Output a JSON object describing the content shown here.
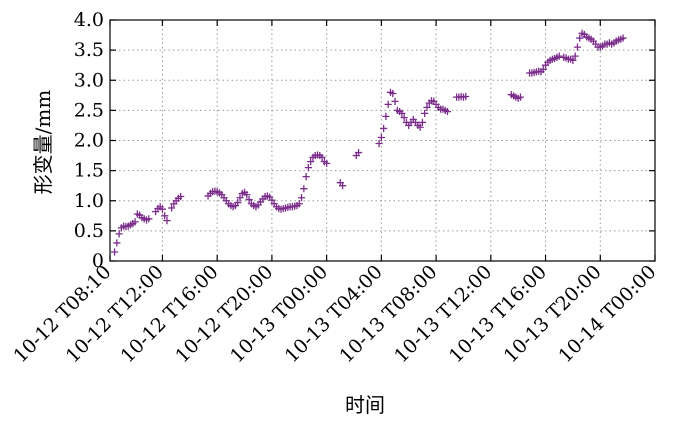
{
  "chart_data": {
    "type": "scatter",
    "title": "",
    "xlabel": "时间",
    "ylabel": "形变量/mm",
    "ylim": [
      0,
      4.0
    ],
    "xlim": [
      "10-12 T08:10",
      "10-14 T00:00"
    ],
    "grid": true,
    "marker": "+",
    "color": "#7b2d8b",
    "x_ticks": [
      "10-12 T08:10",
      "10-12 T12:00",
      "10-12 T16:00",
      "10-12 T20:00",
      "10-13 T00:00",
      "10-13 T04:00",
      "10-13 T08:00",
      "10-13 T12:00",
      "10-13 T16:00",
      "10-13 T20:00",
      "10-14 T00:00"
    ],
    "y_ticks": [
      "0",
      "0.5",
      "1.0",
      "1.5",
      "2.0",
      "2.5",
      "3.0",
      "3.5",
      "4.0"
    ],
    "series": [
      {
        "points": [
          [
            "10-12 T08:30",
            0.15
          ],
          [
            "10-12 T08:40",
            0.3
          ],
          [
            "10-12 T08:50",
            0.45
          ],
          [
            "10-12 T09:00",
            0.55
          ],
          [
            "10-12 T09:10",
            0.58
          ],
          [
            "10-12 T09:20",
            0.57
          ],
          [
            "10-12 T09:30",
            0.58
          ],
          [
            "10-12 T09:40",
            0.6
          ],
          [
            "10-12 T09:50",
            0.62
          ],
          [
            "10-12 T10:00",
            0.65
          ],
          [
            "10-12 T10:10",
            0.78
          ],
          [
            "10-12 T10:20",
            0.76
          ],
          [
            "10-12 T10:30",
            0.72
          ],
          [
            "10-12 T10:40",
            0.7
          ],
          [
            "10-12 T10:50",
            0.68
          ],
          [
            "10-12 T11:00",
            0.7
          ],
          [
            "10-12 T11:30",
            0.82
          ],
          [
            "10-12 T11:40",
            0.87
          ],
          [
            "10-12 T11:50",
            0.9
          ],
          [
            "10-12 T12:00",
            0.86
          ],
          [
            "10-12 T12:10",
            0.75
          ],
          [
            "10-12 T12:20",
            0.67
          ],
          [
            "10-12 T12:40",
            0.88
          ],
          [
            "10-12 T12:50",
            0.95
          ],
          [
            "10-12 T13:00",
            1.0
          ],
          [
            "10-12 T13:10",
            1.04
          ],
          [
            "10-12 T13:20",
            1.07
          ],
          [
            "10-12 T15:20",
            1.08
          ],
          [
            "10-12 T15:30",
            1.12
          ],
          [
            "10-12 T15:40",
            1.15
          ],
          [
            "10-12 T15:50",
            1.16
          ],
          [
            "10-12 T16:00",
            1.15
          ],
          [
            "10-12 T16:10",
            1.13
          ],
          [
            "10-12 T16:20",
            1.1
          ],
          [
            "10-12 T16:30",
            1.05
          ],
          [
            "10-12 T16:40",
            1.0
          ],
          [
            "10-12 T16:50",
            0.95
          ],
          [
            "10-12 T17:00",
            0.92
          ],
          [
            "10-12 T17:10",
            0.9
          ],
          [
            "10-12 T17:20",
            0.92
          ],
          [
            "10-12 T17:30",
            0.97
          ],
          [
            "10-12 T17:40",
            1.05
          ],
          [
            "10-12 T17:50",
            1.12
          ],
          [
            "10-12 T18:00",
            1.14
          ],
          [
            "10-12 T18:10",
            1.1
          ],
          [
            "10-12 T18:20",
            1.02
          ],
          [
            "10-12 T18:30",
            0.95
          ],
          [
            "10-12 T18:40",
            0.92
          ],
          [
            "10-12 T18:50",
            0.9
          ],
          [
            "10-12 T19:00",
            0.93
          ],
          [
            "10-12 T19:10",
            0.98
          ],
          [
            "10-12 T19:20",
            1.03
          ],
          [
            "10-12 T19:30",
            1.07
          ],
          [
            "10-12 T19:40",
            1.08
          ],
          [
            "10-12 T19:50",
            1.06
          ],
          [
            "10-12 T20:00",
            1.01
          ],
          [
            "10-12 T20:10",
            0.95
          ],
          [
            "10-12 T20:20",
            0.9
          ],
          [
            "10-12 T20:30",
            0.87
          ],
          [
            "10-12 T20:40",
            0.86
          ],
          [
            "10-12 T20:50",
            0.87
          ],
          [
            "10-12 T21:00",
            0.88
          ],
          [
            "10-12 T21:10",
            0.89
          ],
          [
            "10-12 T21:20",
            0.9
          ],
          [
            "10-12 T21:30",
            0.9
          ],
          [
            "10-12 T21:40",
            0.91
          ],
          [
            "10-12 T21:50",
            0.92
          ],
          [
            "10-12 T22:00",
            0.95
          ],
          [
            "10-12 T22:10",
            1.05
          ],
          [
            "10-12 T22:20",
            1.2
          ],
          [
            "10-12 T22:30",
            1.4
          ],
          [
            "10-12 T22:40",
            1.55
          ],
          [
            "10-12 T22:50",
            1.65
          ],
          [
            "10-12 T23:00",
            1.72
          ],
          [
            "10-12 T23:10",
            1.75
          ],
          [
            "10-12 T23:20",
            1.76
          ],
          [
            "10-12 T23:30",
            1.75
          ],
          [
            "10-12 T23:40",
            1.72
          ],
          [
            "10-12 T23:50",
            1.65
          ],
          [
            "10-13 T00:00",
            1.62
          ],
          [
            "10-13 T01:00",
            1.3
          ],
          [
            "10-13 T01:10",
            1.25
          ],
          [
            "10-13 T02:10",
            1.75
          ],
          [
            "10-13 T02:20",
            1.8
          ],
          [
            "10-13 T03:50",
            1.95
          ],
          [
            "10-13 T04:00",
            2.05
          ],
          [
            "10-13 T04:10",
            2.2
          ],
          [
            "10-13 T04:20",
            2.4
          ],
          [
            "10-13 T04:30",
            2.6
          ],
          [
            "10-13 T04:40",
            2.8
          ],
          [
            "10-13 T04:50",
            2.78
          ],
          [
            "10-13 T05:00",
            2.65
          ],
          [
            "10-13 T05:10",
            2.5
          ],
          [
            "10-13 T05:20",
            2.48
          ],
          [
            "10-13 T05:30",
            2.45
          ],
          [
            "10-13 T05:40",
            2.38
          ],
          [
            "10-13 T05:50",
            2.3
          ],
          [
            "10-13 T06:00",
            2.25
          ],
          [
            "10-13 T06:10",
            2.3
          ],
          [
            "10-13 T06:20",
            2.35
          ],
          [
            "10-13 T06:30",
            2.3
          ],
          [
            "10-13 T06:40",
            2.25
          ],
          [
            "10-13 T06:50",
            2.22
          ],
          [
            "10-13 T07:00",
            2.3
          ],
          [
            "10-13 T07:10",
            2.45
          ],
          [
            "10-13 T07:20",
            2.55
          ],
          [
            "10-13 T07:30",
            2.62
          ],
          [
            "10-13 T07:40",
            2.66
          ],
          [
            "10-13 T07:50",
            2.65
          ],
          [
            "10-13 T08:00",
            2.6
          ],
          [
            "10-13 T08:10",
            2.55
          ],
          [
            "10-13 T08:20",
            2.52
          ],
          [
            "10-13 T08:30",
            2.52
          ],
          [
            "10-13 T08:40",
            2.5
          ],
          [
            "10-13 T08:50",
            2.48
          ],
          [
            "10-13 T09:30",
            2.72
          ],
          [
            "10-13 T09:40",
            2.72
          ],
          [
            "10-13 T09:50",
            2.73
          ],
          [
            "10-13 T10:00",
            2.72
          ],
          [
            "10-13 T10:10",
            2.73
          ],
          [
            "10-13 T13:30",
            2.76
          ],
          [
            "10-13 T13:40",
            2.74
          ],
          [
            "10-13 T13:50",
            2.72
          ],
          [
            "10-13 T14:00",
            2.7
          ],
          [
            "10-13 T14:10",
            2.72
          ],
          [
            "10-13 T14:50",
            3.12
          ],
          [
            "10-13 T15:00",
            3.12
          ],
          [
            "10-13 T15:10",
            3.13
          ],
          [
            "10-13 T15:20",
            3.14
          ],
          [
            "10-13 T15:30",
            3.15
          ],
          [
            "10-13 T15:40",
            3.14
          ],
          [
            "10-13 T15:50",
            3.18
          ],
          [
            "10-13 T16:00",
            3.25
          ],
          [
            "10-13 T16:10",
            3.3
          ],
          [
            "10-13 T16:20",
            3.33
          ],
          [
            "10-13 T16:30",
            3.35
          ],
          [
            "10-13 T16:40",
            3.36
          ],
          [
            "10-13 T16:50",
            3.38
          ],
          [
            "10-13 T17:00",
            3.4
          ],
          [
            "10-13 T17:20",
            3.38
          ],
          [
            "10-13 T17:30",
            3.37
          ],
          [
            "10-13 T17:40",
            3.35
          ],
          [
            "10-13 T17:50",
            3.35
          ],
          [
            "10-13 T18:00",
            3.33
          ],
          [
            "10-13 T18:10",
            3.4
          ],
          [
            "10-13 T18:20",
            3.55
          ],
          [
            "10-13 T18:30",
            3.7
          ],
          [
            "10-13 T18:40",
            3.78
          ],
          [
            "10-13 T18:50",
            3.76
          ],
          [
            "10-13 T19:00",
            3.72
          ],
          [
            "10-13 T19:10",
            3.7
          ],
          [
            "10-13 T19:20",
            3.68
          ],
          [
            "10-13 T19:30",
            3.65
          ],
          [
            "10-13 T19:40",
            3.6
          ],
          [
            "10-13 T19:50",
            3.55
          ],
          [
            "10-13 T20:00",
            3.55
          ],
          [
            "10-13 T20:10",
            3.57
          ],
          [
            "10-13 T20:20",
            3.6
          ],
          [
            "10-13 T20:30",
            3.6
          ],
          [
            "10-13 T20:40",
            3.62
          ],
          [
            "10-13 T20:50",
            3.6
          ],
          [
            "10-13 T21:00",
            3.62
          ],
          [
            "10-13 T21:10",
            3.65
          ],
          [
            "10-13 T21:20",
            3.67
          ],
          [
            "10-13 T21:30",
            3.68
          ],
          [
            "10-13 T21:40",
            3.7
          ]
        ]
      }
    ]
  }
}
